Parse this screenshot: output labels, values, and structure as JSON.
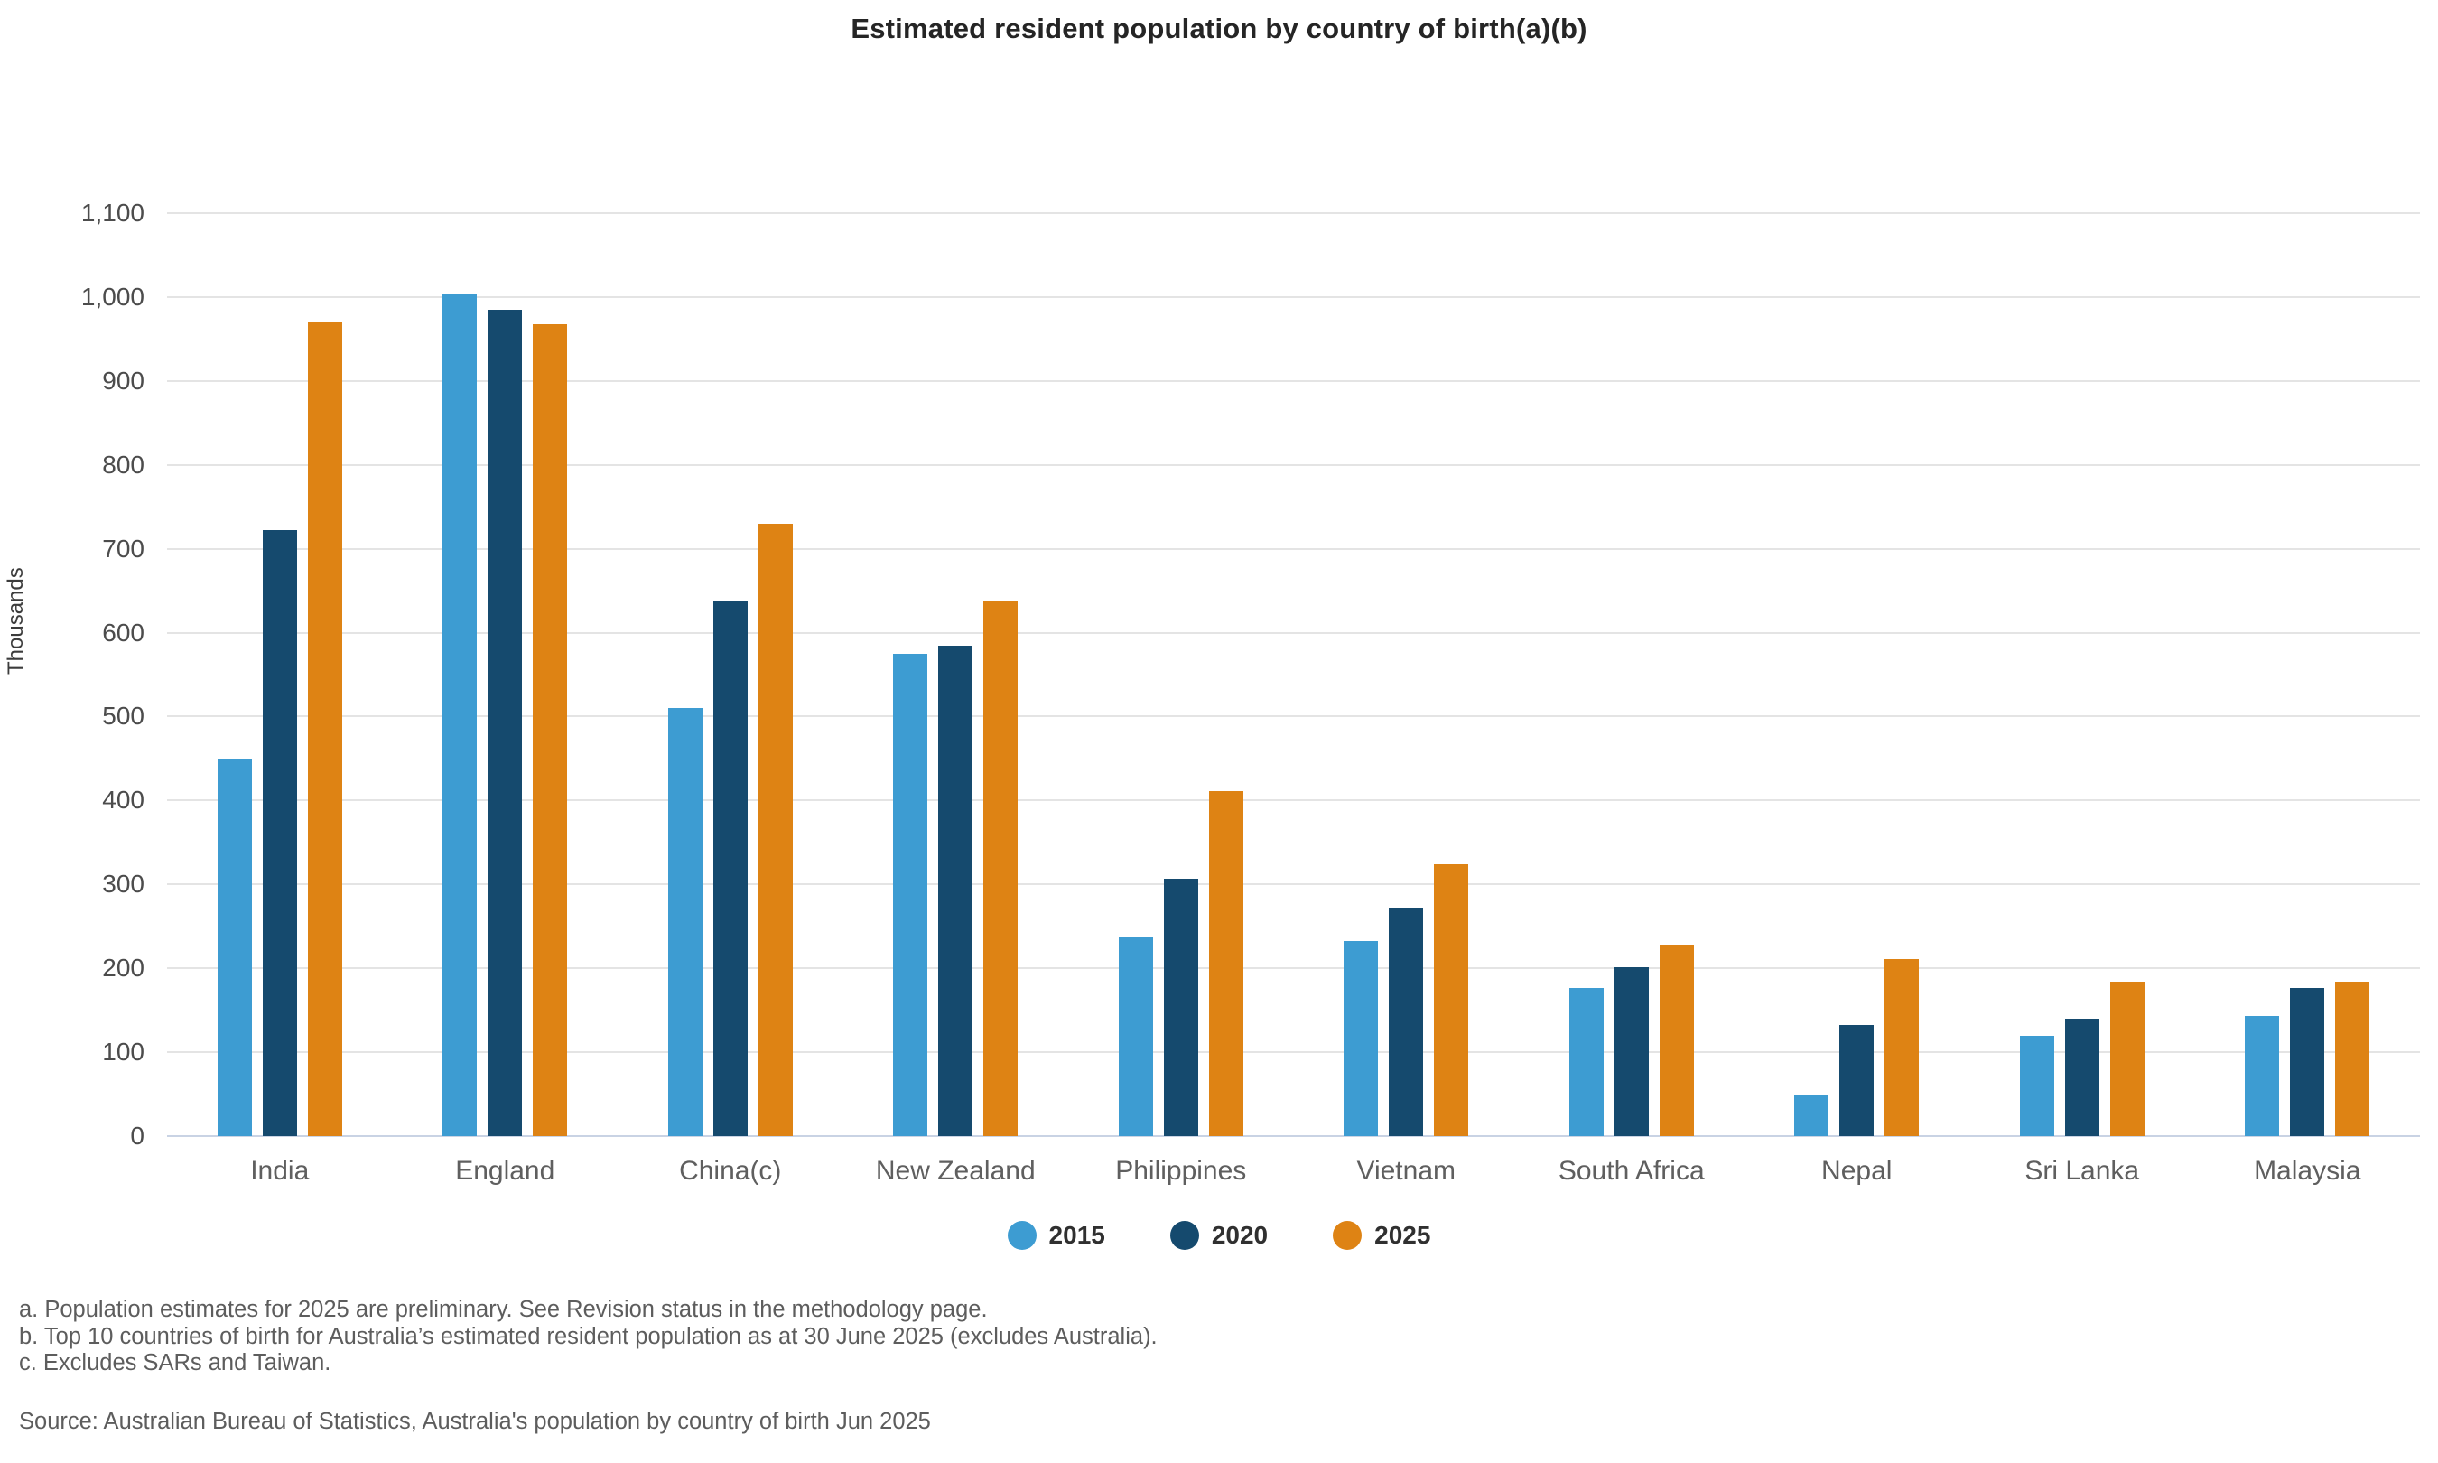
{
  "title": "Estimated resident population by country of birth(a)(b)",
  "y_axis": {
    "label": "Thousands",
    "tick_labels": [
      "0",
      "100",
      "200",
      "300",
      "400",
      "500",
      "600",
      "700",
      "800",
      "900",
      "1,000",
      "1,100"
    ]
  },
  "legend": {
    "items": [
      {
        "label": "2015",
        "color": "#3d9cd2"
      },
      {
        "label": "2020",
        "color": "#154a6e"
      },
      {
        "label": "2025",
        "color": "#de8314"
      }
    ]
  },
  "footnotes": {
    "line_a": "a. Population estimates for 2025 are preliminary. See Revision status in the methodology page.",
    "line_b": "b. Top 10 countries of birth for Australia’s estimated resident population as at 30 June 2025 (excludes Australia).",
    "line_c": "c. Excludes SARs and Taiwan."
  },
  "source": "Source: Australian Bureau of Statistics, Australia's population by country of birth Jun 2025",
  "colors": {
    "series_2015": "#3d9cd2",
    "series_2020": "#154a6e",
    "series_2025": "#de8314",
    "gridline": "#e4e4e4",
    "zero_line": "#c9d3e4",
    "tick_text": "#4c4c4c",
    "category_text": "#5f5f5f",
    "title_text": "#252525",
    "footnote_text": "#5d5d5d"
  },
  "chart_data": {
    "type": "bar",
    "title": "Estimated resident population by country of birth(a)(b)",
    "xlabel": "",
    "ylabel": "Thousands",
    "ylim": [
      0,
      1100
    ],
    "y_tick_step": 100,
    "grid": true,
    "legend_position": "bottom",
    "categories": [
      "India",
      "England",
      "China(c)",
      "New Zealand",
      "Philippines",
      "Vietnam",
      "South Africa",
      "Nepal",
      "Sri Lanka",
      "Malaysia"
    ],
    "series": [
      {
        "name": "2015",
        "color": "#3d9cd2",
        "values": [
          449,
          1004,
          510,
          575,
          238,
          233,
          177,
          48,
          119,
          143
        ]
      },
      {
        "name": "2020",
        "color": "#154a6e",
        "values": [
          722,
          985,
          638,
          584,
          307,
          272,
          201,
          132,
          140,
          177
        ]
      },
      {
        "name": "2025",
        "color": "#de8314",
        "values": [
          970,
          968,
          730,
          638,
          411,
          324,
          228,
          211,
          184,
          184
        ]
      }
    ]
  }
}
